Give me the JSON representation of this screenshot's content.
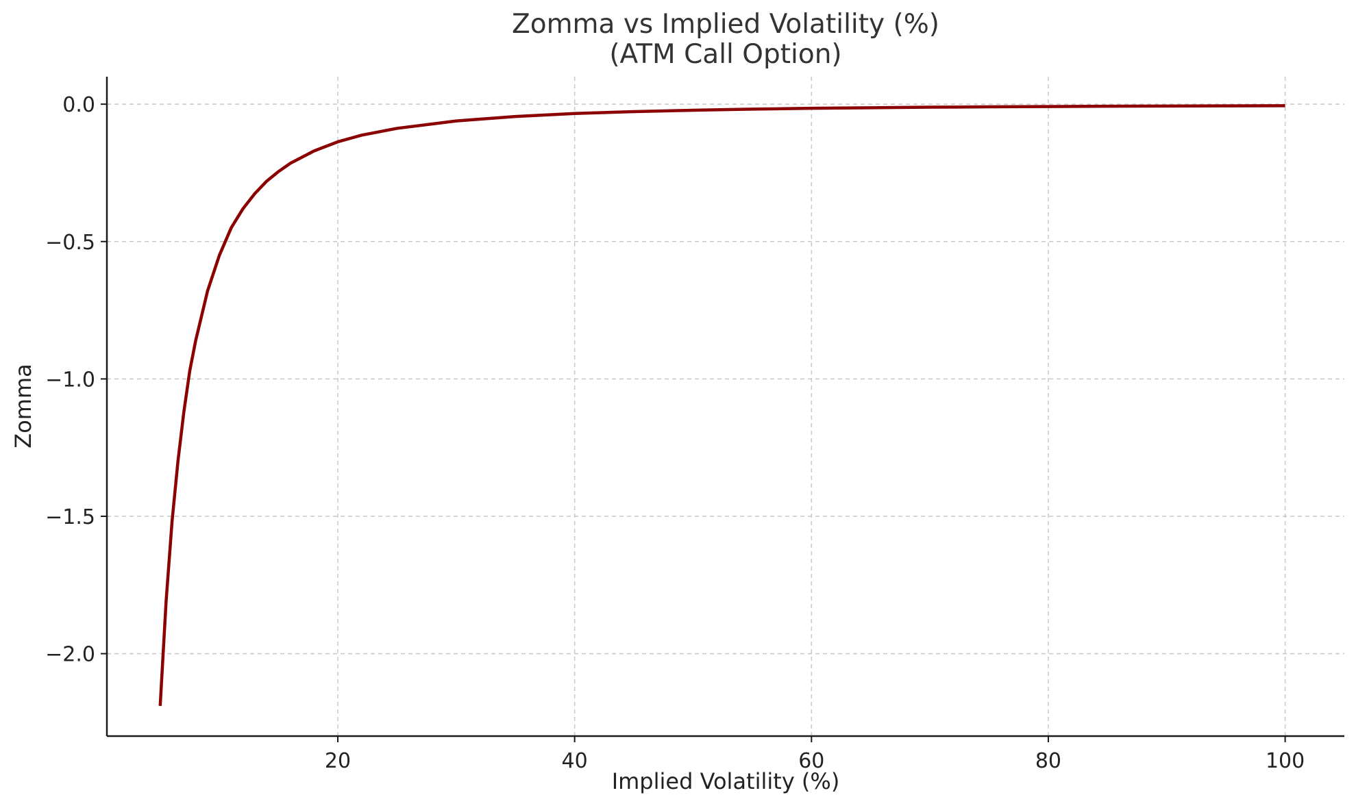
{
  "chart_data": {
    "type": "line",
    "title": "Zomma vs Implied Volatility (%)",
    "subtitle": "(ATM Call Option)",
    "xlabel": "Implied Volatility (%)",
    "ylabel": "Zomma",
    "xlim": [
      0.5,
      105
    ],
    "ylim": [
      -2.3,
      0.1
    ],
    "xticks": [
      20,
      40,
      60,
      80,
      100
    ],
    "xtick_labels": [
      "20",
      "40",
      "60",
      "80",
      "100"
    ],
    "yticks": [
      0.0,
      -0.5,
      -1.0,
      -1.5,
      -2.0
    ],
    "ytick_labels": [
      "0.0",
      "−0.5",
      "−1.0",
      "−1.5",
      "−2.0"
    ],
    "grid": true,
    "legend": "none",
    "colors": {
      "line": "#8b0000",
      "grid": "#c8c8c8",
      "axis": "#1a1a1a",
      "text": "#333333"
    },
    "series": [
      {
        "x": [
          5,
          5.5,
          6,
          6.5,
          7,
          7.5,
          8,
          9,
          10,
          11,
          12,
          13,
          14,
          15,
          16,
          18,
          20,
          22,
          25,
          30,
          35,
          40,
          45,
          50,
          55,
          60,
          65,
          70,
          75,
          80,
          85,
          90,
          95,
          100
        ],
        "y": [
          -2.19,
          -1.81,
          -1.52,
          -1.3,
          -1.12,
          -0.97,
          -0.86,
          -0.68,
          -0.55,
          -0.45,
          -0.38,
          -0.325,
          -0.28,
          -0.245,
          -0.215,
          -0.17,
          -0.137,
          -0.113,
          -0.088,
          -0.061,
          -0.045,
          -0.034,
          -0.027,
          -0.022,
          -0.018,
          -0.015,
          -0.013,
          -0.011,
          -0.0098,
          -0.0086,
          -0.0076,
          -0.0068,
          -0.0061,
          -0.0055
        ]
      }
    ]
  }
}
